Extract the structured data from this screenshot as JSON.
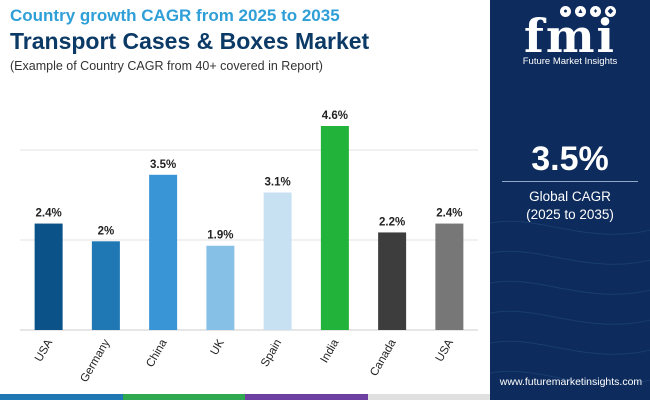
{
  "header": {
    "kicker": "Country growth CAGR from 2025 to 2035",
    "title": "Transport Cases & Boxes Market",
    "note": "(Example of Country CAGR from 40+ covered in Report)"
  },
  "sidebar": {
    "logo_text": "fmi",
    "logo_sub": "Future Market Insights",
    "kpi_value": "3.5%",
    "kpi_label_1": "Global CAGR",
    "kpi_label_2": "(2025 to 2035)",
    "url": "www.futuremarketinsights.com",
    "background": "#0d2b5c"
  },
  "chart_data": {
    "type": "bar",
    "categories": [
      "USA",
      "Germany",
      "China",
      "UK",
      "Spain",
      "India",
      "Canada",
      "USA"
    ],
    "values": [
      2.4,
      2.0,
      3.5,
      1.9,
      3.1,
      4.6,
      2.2,
      2.4
    ],
    "data_labels": [
      "2.4%",
      "2%",
      "3.5%",
      "1.9%",
      "3.1%",
      "4.6%",
      "2.2%",
      "2.4%"
    ],
    "colors": [
      "#0b5289",
      "#1f77b4",
      "#3a95d6",
      "#86c0e6",
      "#c7e1f3",
      "#22b33a",
      "#3d3d3d",
      "#777777"
    ],
    "ylim": [
      0,
      4.6
    ],
    "grid": true,
    "title": "",
    "xlabel": "",
    "ylabel": ""
  },
  "footer_colors": [
    "#1f77b4",
    "#2fa84f",
    "#6d3fa0",
    "#e0e0e0"
  ]
}
